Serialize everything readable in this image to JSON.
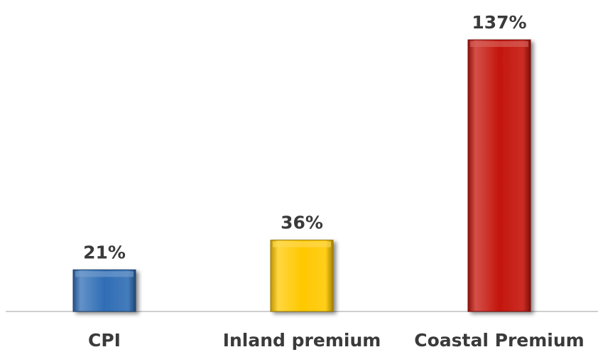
{
  "chart_data": {
    "type": "bar",
    "categories": [
      "CPI",
      "Inland premium",
      "Coastal Premium"
    ],
    "values": [
      21,
      36,
      137
    ],
    "data_labels": [
      "21%",
      "36%",
      "137%"
    ],
    "value_unit": "%",
    "colors": [
      "#2f6db5",
      "#ffc800",
      "#c4160c"
    ],
    "title": "",
    "xlabel": "",
    "ylabel": "",
    "ylim": [
      0,
      137
    ],
    "grid": false,
    "legend": "none"
  }
}
